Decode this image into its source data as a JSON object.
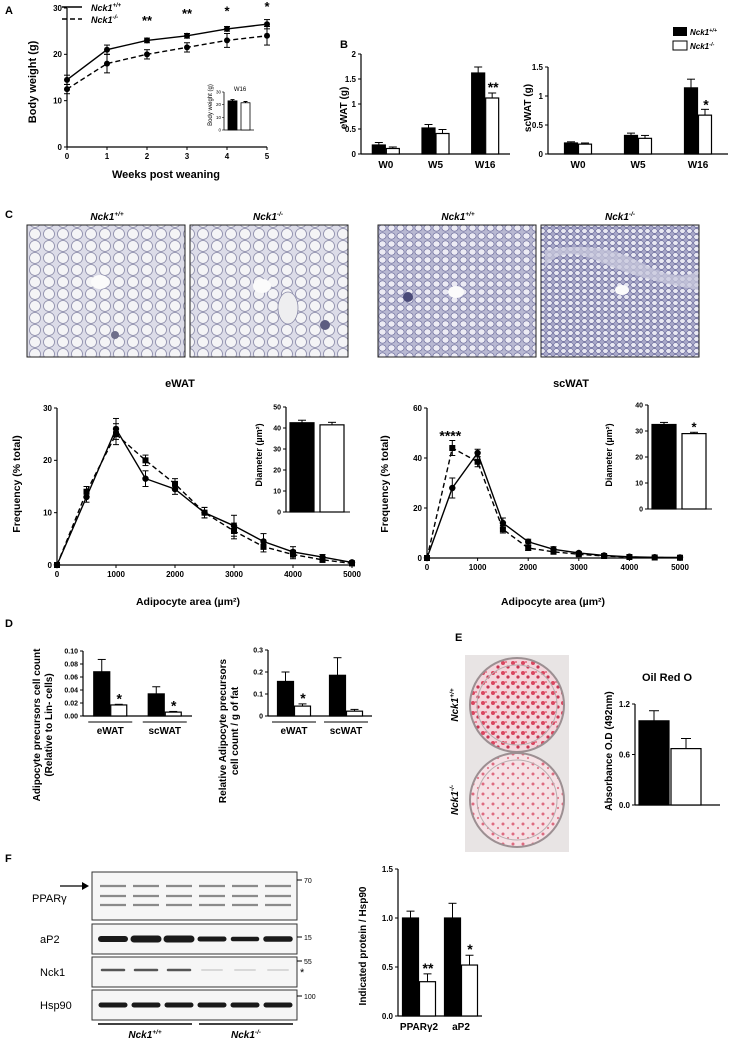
{
  "panels": {
    "A": {
      "letter": "A",
      "ylabel": "Body weight (g)",
      "xlabel": "Weeks post weaning",
      "legend": [
        "Nck1",
        "Nck1"
      ],
      "legend_sup": [
        "+/+",
        "-/-"
      ],
      "sig": [
        "**",
        "**",
        "*",
        "*"
      ],
      "inset_label": "W16",
      "inset_ylabel": "Body weight (g)",
      "inset_ticks": [
        "0",
        "10",
        "20",
        "30"
      ]
    },
    "B": {
      "letter": "B",
      "legend": [
        "Nck1",
        "Nck1"
      ],
      "legend_sup": [
        "+/+",
        "-/-"
      ],
      "e_ylabel": "eWAT (g)",
      "sc_ylabel": "scWAT (g)",
      "e_sig": "**",
      "sc_sig": "*"
    },
    "C": {
      "letter": "C",
      "img_labels": [
        "Nck1",
        "Nck1",
        "Nck1",
        "Nck1"
      ],
      "img_sup": [
        "+/+",
        "-/-",
        "+/+",
        "-/-"
      ],
      "e_title": "eWAT",
      "sc_title": "scWAT",
      "freq_ylabel": "Frequency (% total)",
      "xlabel": "Adipocyte area (µm²)",
      "diam_ylabel": "Diameter (µm²)",
      "sc_sig": "****",
      "diam_sig": "*"
    },
    "D": {
      "letter": "D",
      "left_ylabel": [
        "Adipocyte precursors cell count",
        "(Relative to Lin- cells)"
      ],
      "right_ylabel": [
        "Relative Adipocyte precursors",
        "cell count / g of fat"
      ],
      "groups": [
        "eWAT",
        "scWAT"
      ],
      "sig": "*"
    },
    "E": {
      "letter": "E",
      "title": "Oil Red O",
      "ylabel": "Absorbance O.D (492nm)",
      "dish_labels": [
        "Nck1",
        "Nck1"
      ],
      "dish_sup": [
        "+/+",
        "-/-"
      ]
    },
    "F": {
      "letter": "F",
      "blot_labels": [
        "PPARγ",
        "aP2",
        "Nck1",
        "Hsp90"
      ],
      "markers": [
        "70",
        "15",
        "55",
        "100"
      ],
      "nonspecific": "*",
      "group_labels": [
        "Nck1",
        "Nck1"
      ],
      "group_sup": [
        "+/+",
        "-/-"
      ],
      "ylabel": "Indicated protein / Hsp90",
      "categories": [
        "PPARγ2",
        "aP2"
      ],
      "sig": [
        "**",
        "*"
      ]
    }
  },
  "chart_data": [
    {
      "id": "A-body-weight",
      "type": "line",
      "xlabel": "Weeks post weaning",
      "ylabel": "Body weight (g)",
      "x": [
        0,
        1,
        2,
        3,
        4,
        5
      ],
      "xlim": [
        0,
        5
      ],
      "ylim": [
        0,
        30
      ],
      "xticks": [
        0,
        1,
        2,
        3,
        4,
        5
      ],
      "yticks": [
        0,
        10,
        20,
        30
      ],
      "series": [
        {
          "name": "Nck1+/+",
          "style": "solid",
          "values": [
            14.5,
            21,
            23,
            24,
            25.5,
            26.5
          ],
          "err": [
            1,
            1,
            0.5,
            0.5,
            0.5,
            1
          ]
        },
        {
          "name": "Nck1-/-",
          "style": "dashed",
          "values": [
            12.5,
            18,
            20,
            21.5,
            23,
            24
          ],
          "err": [
            1,
            2,
            1,
            1,
            1.5,
            2
          ]
        }
      ],
      "inset": {
        "type": "bar",
        "label": "W16",
        "ylim": [
          0,
          30
        ],
        "values": [
          23,
          21.5
        ],
        "err": [
          1,
          1
        ]
      }
    },
    {
      "id": "B-eWAT",
      "type": "bar",
      "ylabel": "eWAT (g)",
      "categories": [
        "W0",
        "W5",
        "W16"
      ],
      "ylim": [
        0,
        2.0
      ],
      "yticks": [
        0,
        0.5,
        1.0,
        1.5,
        2.0
      ],
      "series": [
        {
          "name": "Nck1+/+",
          "values": [
            0.18,
            0.52,
            1.62
          ],
          "err": [
            0.05,
            0.07,
            0.12
          ]
        },
        {
          "name": "Nck1-/-",
          "values": [
            0.11,
            0.41,
            1.12
          ],
          "err": [
            0.03,
            0.08,
            0.1
          ]
        }
      ]
    },
    {
      "id": "B-scWAT",
      "type": "bar",
      "ylabel": "scWAT (g)",
      "categories": [
        "W0",
        "W5",
        "W16"
      ],
      "ylim": [
        0,
        1.5
      ],
      "yticks": [
        0,
        0.5,
        1.0,
        1.5
      ],
      "series": [
        {
          "name": "Nck1+/+",
          "values": [
            0.19,
            0.32,
            1.14
          ],
          "err": [
            0.02,
            0.04,
            0.15
          ]
        },
        {
          "name": "Nck1-/-",
          "values": [
            0.17,
            0.27,
            0.67
          ],
          "err": [
            0.02,
            0.05,
            0.1
          ]
        }
      ]
    },
    {
      "id": "C-eWAT-frequency",
      "type": "line",
      "title": "eWAT",
      "xlabel": "Adipocyte area (µm²)",
      "ylabel": "Frequency (% total)",
      "x": [
        0,
        500,
        1000,
        1500,
        2000,
        2500,
        3000,
        3500,
        4000,
        4500,
        5000
      ],
      "xlim": [
        0,
        5000
      ],
      "ylim": [
        0,
        30
      ],
      "xticks": [
        0,
        1000,
        2000,
        3000,
        4000,
        5000
      ],
      "yticks": [
        0,
        10,
        20,
        30
      ],
      "series": [
        {
          "name": "Nck1+/+",
          "style": "solid",
          "marker": "circle",
          "values": [
            0,
            13,
            26,
            16.5,
            14.5,
            10,
            7.5,
            4.5,
            2.5,
            1.5,
            0.5
          ],
          "err": [
            0,
            1,
            2,
            1.5,
            1,
            1,
            2,
            1.5,
            1,
            0.5,
            0.3
          ]
        },
        {
          "name": "Nck1-/-",
          "style": "dashed",
          "marker": "square",
          "values": [
            0,
            14,
            25,
            20,
            15.5,
            10,
            6.5,
            3.5,
            2,
            1,
            0.3
          ],
          "err": [
            0,
            1,
            2,
            1,
            1,
            1,
            1.5,
            1,
            0.8,
            0.5,
            0.2
          ]
        }
      ],
      "inset": {
        "type": "bar",
        "ylabel": "Diameter (µm²)",
        "ylim": [
          0,
          50
        ],
        "yticks": [
          0,
          10,
          20,
          30,
          40,
          50
        ],
        "values": [
          42.5,
          41.5
        ],
        "err": [
          1.2,
          1.2
        ]
      }
    },
    {
      "id": "C-scWAT-frequency",
      "type": "line",
      "title": "scWAT",
      "xlabel": "Adipocyte area (µm²)",
      "ylabel": "Frequency (% total)",
      "x": [
        0,
        500,
        1000,
        1500,
        2000,
        2500,
        3000,
        3500,
        4000,
        4500,
        5000
      ],
      "xlim": [
        0,
        5000
      ],
      "ylim": [
        0,
        60
      ],
      "xticks": [
        0,
        1000,
        2000,
        3000,
        4000,
        5000
      ],
      "yticks": [
        0,
        20,
        40,
        60
      ],
      "series": [
        {
          "name": "Nck1+/+",
          "style": "solid",
          "marker": "circle",
          "values": [
            0,
            28,
            42,
            14,
            6.5,
            3.5,
            2,
            1,
            0.5,
            0.3,
            0.2
          ],
          "err": [
            0,
            4,
            1.5,
            2,
            1,
            1,
            0.5,
            0.3,
            0.2,
            0.1,
            0.1
          ]
        },
        {
          "name": "Nck1-/-",
          "style": "dashed",
          "marker": "square",
          "values": [
            0,
            44,
            38.5,
            11.5,
            4,
            2.5,
            1.5,
            0.8,
            0.4,
            0.2,
            0.1
          ],
          "err": [
            0,
            3,
            2,
            1.5,
            1,
            0.5,
            0.5,
            0.3,
            0.2,
            0.1,
            0.1
          ]
        }
      ],
      "inset": {
        "type": "bar",
        "ylabel": "Diameter (µm²)",
        "ylim": [
          0,
          40
        ],
        "yticks": [
          0,
          10,
          20,
          30,
          40
        ],
        "values": [
          32.5,
          29
        ],
        "err": [
          0.8,
          0.5
        ]
      }
    },
    {
      "id": "D-relative-lin",
      "type": "bar",
      "ylabel": "Adipocyte precursors cell count (Relative to Lin- cells)",
      "categories": [
        "eWAT",
        "scWAT"
      ],
      "ylim": [
        0,
        0.1
      ],
      "yticks": [
        0,
        0.02,
        0.04,
        0.06,
        0.08,
        0.1
      ],
      "series": [
        {
          "name": "Nck1+/+",
          "values": [
            0.068,
            0.034
          ],
          "err": [
            0.019,
            0.011
          ]
        },
        {
          "name": "Nck1-/-",
          "values": [
            0.017,
            0.006
          ],
          "err": [
            0.001,
            0.001
          ]
        }
      ]
    },
    {
      "id": "D-per-gram",
      "type": "bar",
      "ylabel": "Relative Adipocyte precursors cell count / g of fat",
      "categories": [
        "eWAT",
        "scWAT"
      ],
      "ylim": [
        0,
        0.3
      ],
      "yticks": [
        0,
        0.1,
        0.2,
        0.3
      ],
      "series": [
        {
          "name": "Nck1+/+",
          "values": [
            0.157,
            0.185
          ],
          "err": [
            0.043,
            0.08
          ]
        },
        {
          "name": "Nck1-/-",
          "values": [
            0.045,
            0.022
          ],
          "err": [
            0.01,
            0.008
          ]
        }
      ]
    },
    {
      "id": "E-oil-red-o",
      "type": "bar",
      "title": "Oil Red O",
      "ylabel": "Absorbance O.D (492nm)",
      "ylim": [
        0,
        1.2
      ],
      "yticks": [
        0,
        0.6,
        1.2
      ],
      "series": [
        {
          "name": "Nck1+/+",
          "values": [
            1.0
          ],
          "err": [
            0.12
          ]
        },
        {
          "name": "Nck1-/-",
          "values": [
            0.67
          ],
          "err": [
            0.12
          ]
        }
      ]
    },
    {
      "id": "F-protein-quant",
      "type": "bar",
      "ylabel": "Indicated protein / Hsp90",
      "categories": [
        "PPARγ2",
        "aP2"
      ],
      "ylim": [
        0,
        1.5
      ],
      "yticks": [
        0,
        0.5,
        1.0,
        1.5
      ],
      "series": [
        {
          "name": "Nck1+/+",
          "values": [
            1.0,
            1.0
          ],
          "err": [
            0.07,
            0.15
          ]
        },
        {
          "name": "Nck1-/-",
          "values": [
            0.35,
            0.52
          ],
          "err": [
            0.08,
            0.1
          ]
        }
      ]
    }
  ]
}
